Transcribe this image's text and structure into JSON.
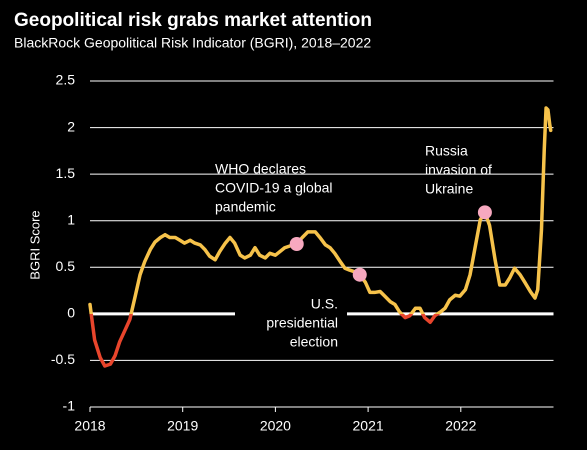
{
  "chart_data": {
    "type": "line",
    "title": "Geopolitical risk grabs market attention",
    "subtitle": "BlackRock Geopolitical Risk Indicator (BGRI), 2018–2022",
    "ylabel": "BGRI Score",
    "xlim": [
      2018,
      2023
    ],
    "xticks": [
      2018,
      2019,
      2020,
      2021,
      2022
    ],
    "ylim": [
      -1,
      2.5
    ],
    "yticks": [
      -1,
      -0.5,
      0,
      0.5,
      1,
      1.5,
      2,
      2.5
    ],
    "grid": true,
    "negative_color": "#e8452c",
    "series": [
      {
        "name": "BGRI",
        "color": "#f6c24a",
        "x": [
          2018.0,
          2018.05,
          2018.11,
          2018.16,
          2018.22,
          2018.27,
          2018.32,
          2018.38,
          2018.43,
          2018.49,
          2018.54,
          2018.59,
          2018.65,
          2018.7,
          2018.76,
          2018.81,
          2018.86,
          2018.92,
          2018.97,
          2019.02,
          2019.08,
          2019.13,
          2019.19,
          2019.24,
          2019.29,
          2019.35,
          2019.4,
          2019.46,
          2019.51,
          2019.56,
          2019.62,
          2019.67,
          2019.73,
          2019.78,
          2019.83,
          2019.89,
          2019.94,
          2020.0,
          2020.1,
          2020.16,
          2020.23,
          2020.29,
          2020.35,
          2020.43,
          2020.48,
          2020.54,
          2020.59,
          2020.64,
          2020.7,
          2020.75,
          2020.8,
          2020.86,
          2020.91,
          2020.97,
          2021.02,
          2021.07,
          2021.13,
          2021.18,
          2021.24,
          2021.29,
          2021.34,
          2021.4,
          2021.45,
          2021.51,
          2021.56,
          2021.61,
          2021.67,
          2021.72,
          2021.78,
          2021.83,
          2021.88,
          2021.94,
          2021.99,
          2022.05,
          2022.1,
          2022.15,
          2022.21,
          2022.26,
          2022.31,
          2022.37,
          2022.42,
          2022.48,
          2022.53,
          2022.58,
          2022.64,
          2022.69,
          2022.75,
          2022.8,
          2022.83,
          2022.87,
          2022.9,
          2022.92,
          2022.94,
          2022.96,
          2022.97
        ],
        "values": [
          0.1,
          -0.28,
          -0.47,
          -0.56,
          -0.54,
          -0.45,
          -0.3,
          -0.17,
          -0.06,
          0.2,
          0.42,
          0.56,
          0.69,
          0.77,
          0.82,
          0.85,
          0.82,
          0.82,
          0.79,
          0.76,
          0.79,
          0.76,
          0.74,
          0.69,
          0.62,
          0.58,
          0.67,
          0.76,
          0.82,
          0.76,
          0.63,
          0.6,
          0.63,
          0.71,
          0.63,
          0.6,
          0.65,
          0.63,
          0.71,
          0.73,
          0.75,
          0.82,
          0.88,
          0.88,
          0.82,
          0.74,
          0.71,
          0.65,
          0.56,
          0.49,
          0.47,
          0.45,
          0.42,
          0.34,
          0.23,
          0.23,
          0.24,
          0.19,
          0.13,
          0.1,
          0.02,
          -0.04,
          -0.02,
          0.06,
          0.06,
          -0.04,
          -0.09,
          -0.02,
          0.02,
          0.06,
          0.15,
          0.2,
          0.19,
          0.26,
          0.42,
          0.69,
          1.01,
          1.09,
          0.95,
          0.58,
          0.31,
          0.31,
          0.39,
          0.49,
          0.42,
          0.34,
          0.24,
          0.17,
          0.26,
          0.9,
          1.76,
          2.21,
          2.19,
          2.03,
          1.97
        ]
      }
    ],
    "annotations": [
      {
        "text": [
          "WHO declares",
          "COVID-19 a global",
          "pandemic"
        ],
        "x": 2020.23,
        "y": 0.75,
        "color": "#f7a8bf"
      },
      {
        "text": [
          "U.S.",
          "presidential",
          "election"
        ],
        "x": 2020.91,
        "y": 0.42,
        "color": "#f7a8bf"
      },
      {
        "text": [
          "Russia",
          "invasion of",
          "Ukraine"
        ],
        "x": 2022.26,
        "y": 1.09,
        "color": "#f7a8bf"
      }
    ]
  }
}
